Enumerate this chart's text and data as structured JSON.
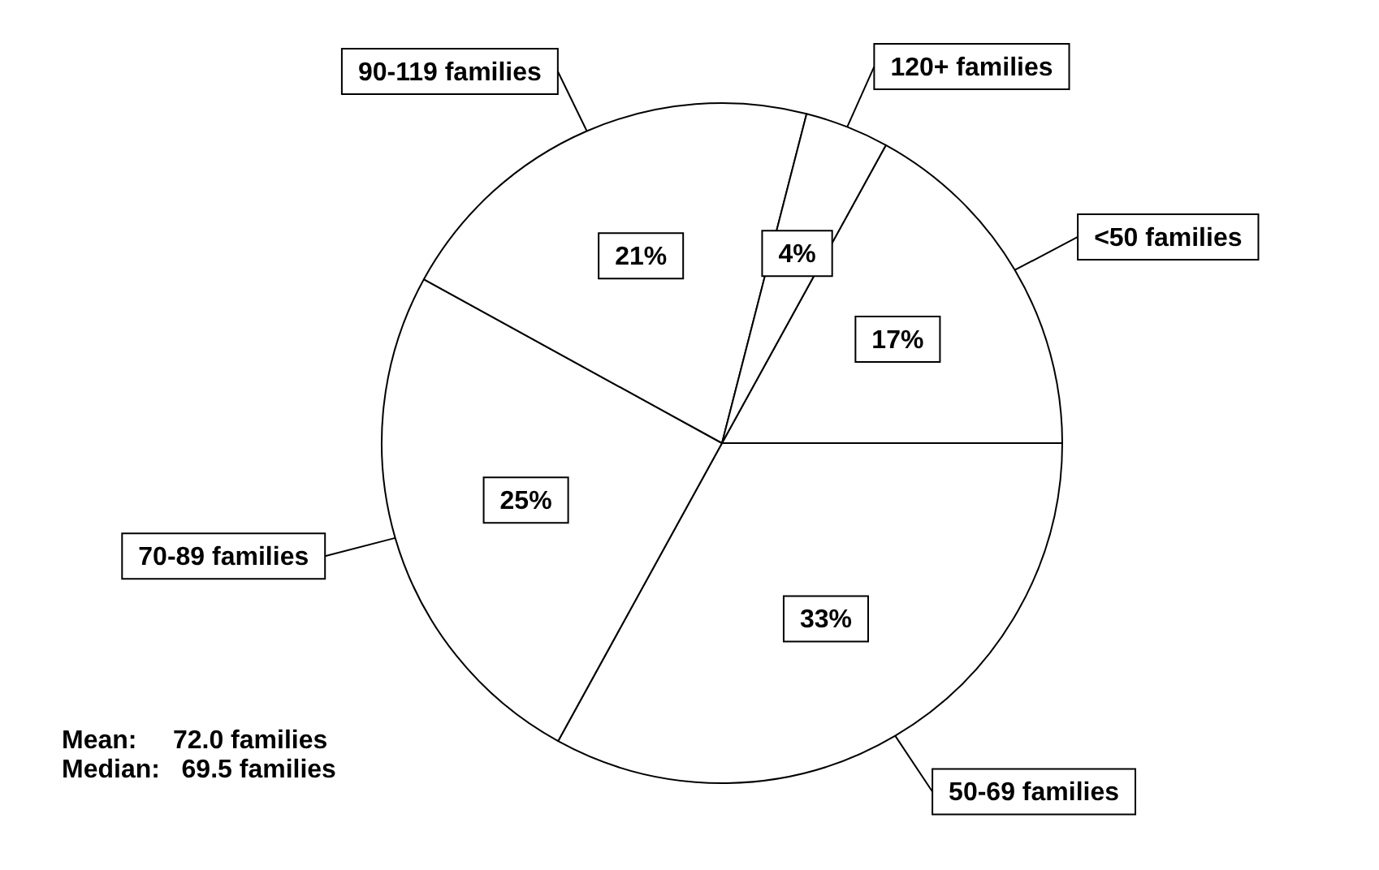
{
  "chart_data": {
    "type": "pie",
    "categories": [
      "<50 families",
      "50-69 families",
      "70-89 families",
      "90-119 families",
      "120+ families"
    ],
    "values": [
      17,
      33,
      25,
      21,
      4
    ],
    "colors": [
      "#ffffff",
      "#ffffff",
      "#ffffff",
      "#ffffff",
      "#ffffff"
    ],
    "value_labels": [
      "17%",
      "33%",
      "25%",
      "21%",
      "4%"
    ],
    "legend": false,
    "annotations": [
      "Mean:     72.0 families",
      "Median:   69.5 families"
    ]
  }
}
